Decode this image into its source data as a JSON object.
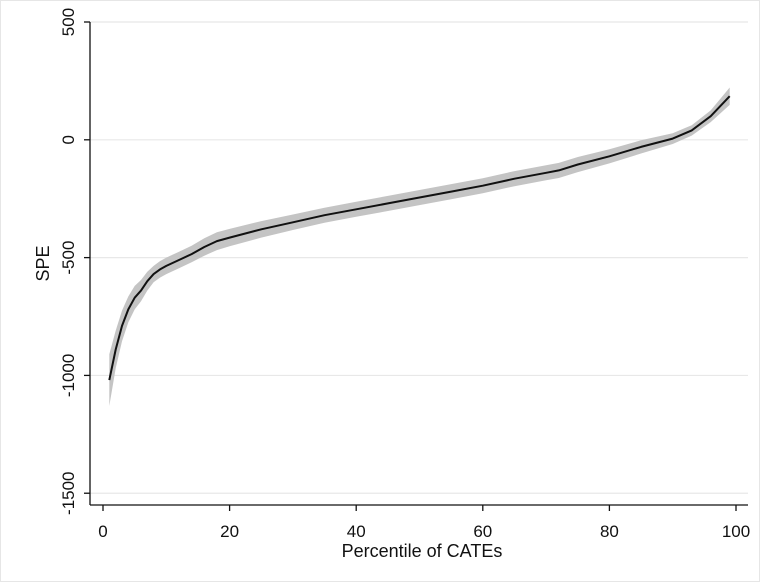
{
  "chart_data": {
    "type": "line",
    "xlabel": "Percentile of CATEs",
    "ylabel": "SPE",
    "xlim": [
      0,
      100
    ],
    "ylim": [
      -1550,
      500
    ],
    "xticks": [
      0,
      20,
      40,
      60,
      80,
      100
    ],
    "yticks": [
      -1500,
      -1000,
      -500,
      0,
      500
    ],
    "grid": true,
    "colors": {
      "line": "#111111",
      "band": "#c4c4c4",
      "grid": "#e8e8e8",
      "axis": "#111111"
    },
    "x": [
      1,
      2,
      3,
      4,
      5,
      6,
      7,
      8,
      9,
      10,
      12,
      14,
      16,
      18,
      20,
      25,
      30,
      35,
      40,
      45,
      50,
      55,
      60,
      65,
      70,
      72,
      75,
      80,
      85,
      90,
      93,
      96,
      99
    ],
    "y": [
      -1020,
      -890,
      -790,
      -720,
      -670,
      -640,
      -600,
      -570,
      -550,
      -535,
      -510,
      -485,
      -455,
      -430,
      -415,
      -380,
      -350,
      -320,
      -295,
      -270,
      -245,
      -220,
      -195,
      -165,
      -140,
      -130,
      -105,
      -70,
      -30,
      5,
      40,
      100,
      185
    ],
    "lower": [
      -1130,
      -970,
      -855,
      -775,
      -720,
      -685,
      -640,
      -605,
      -585,
      -570,
      -545,
      -520,
      -492,
      -468,
      -452,
      -415,
      -383,
      -352,
      -327,
      -302,
      -277,
      -252,
      -227,
      -197,
      -172,
      -162,
      -137,
      -100,
      -58,
      -18,
      18,
      75,
      148
    ],
    "upper": [
      -910,
      -810,
      -725,
      -665,
      -620,
      -595,
      -560,
      -535,
      -515,
      -500,
      -475,
      -450,
      -418,
      -392,
      -378,
      -345,
      -317,
      -288,
      -263,
      -238,
      -213,
      -188,
      -163,
      -133,
      -108,
      -98,
      -73,
      -40,
      -2,
      28,
      62,
      125,
      222
    ]
  }
}
